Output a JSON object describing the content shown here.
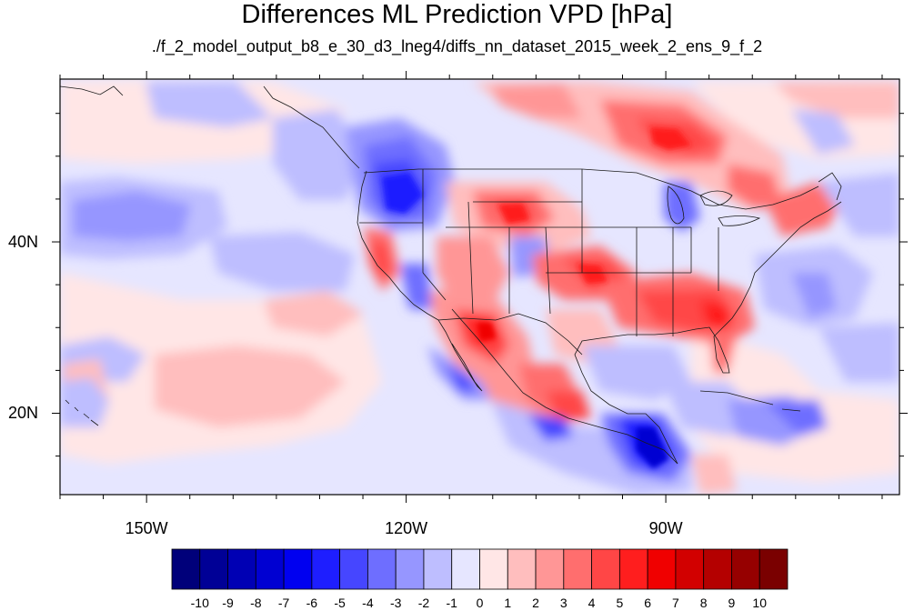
{
  "title": "Differences ML Prediction VPD [hPa]",
  "subtitle": "./f_2_model_output_b8_e_30_d3_lneg4/diffs_nn_dataset_2015_week_2_ens_9_f_2",
  "map": {
    "lon_range": [
      -160,
      -63
    ],
    "lat_range": [
      10.5,
      59
    ],
    "lon_labels": [
      {
        "lon": -150,
        "label": "150W"
      },
      {
        "lon": -120,
        "label": "120W"
      },
      {
        "lon": -90,
        "label": "90W"
      }
    ],
    "lat_labels": [
      {
        "lat": 40,
        "label": "40N"
      },
      {
        "lat": 20,
        "label": "20N"
      }
    ]
  },
  "colorbar": {
    "labels": [
      "-10",
      "-9",
      "-8",
      "-7",
      "-6",
      "-5",
      "-4",
      "-3",
      "-2",
      "-1",
      "0",
      "1",
      "2",
      "3",
      "4",
      "5",
      "6",
      "7",
      "8",
      "9",
      "10"
    ],
    "colors": [
      "#00007a",
      "#000096",
      "#0000b4",
      "#0000d2",
      "#0000f0",
      "#1e1eff",
      "#4646ff",
      "#6e6eff",
      "#9696ff",
      "#bebeff",
      "#e6e6ff",
      "#ffe6e6",
      "#ffbebe",
      "#ff9696",
      "#ff6e6e",
      "#ff4646",
      "#ff1e1e",
      "#f00000",
      "#d20000",
      "#b40000",
      "#960000",
      "#7a0000"
    ]
  }
}
